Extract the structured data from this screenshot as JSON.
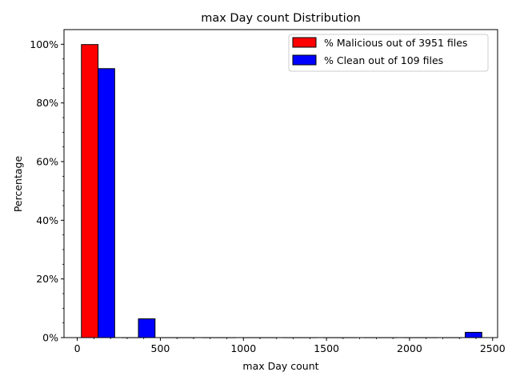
{
  "chart_data": {
    "type": "bar",
    "title": "max Day count Distribution",
    "xlabel": "max Day count",
    "ylabel": "Percentage",
    "xlim": [
      -80,
      2530
    ],
    "ylim": [
      0,
      105
    ],
    "x_ticks": [
      0,
      500,
      1000,
      1500,
      2000,
      2500
    ],
    "y_ticks": [
      0,
      20,
      40,
      60,
      80,
      100
    ],
    "y_tick_labels": [
      "0%",
      "20%",
      "40%",
      "60%",
      "80%",
      "100%"
    ],
    "grid": false,
    "legend_position": "upper right",
    "series": [
      {
        "name": "% Malicious out of 3951 files",
        "color": "#ff0000",
        "bars": [
          {
            "x0": 25,
            "x1": 125,
            "value": 99.9
          },
          {
            "x0": 268,
            "x1": 368,
            "value": 0
          },
          {
            "x0": 510,
            "x1": 610,
            "value": 0
          },
          {
            "x0": 753,
            "x1": 853,
            "value": 0
          },
          {
            "x0": 996,
            "x1": 1096,
            "value": 0
          },
          {
            "x0": 1239,
            "x1": 1339,
            "value": 0
          },
          {
            "x0": 1482,
            "x1": 1582,
            "value": 0
          },
          {
            "x0": 1725,
            "x1": 1825,
            "value": 0
          },
          {
            "x0": 1968,
            "x1": 2068,
            "value": 0
          },
          {
            "x0": 2211,
            "x1": 2311,
            "value": 0
          }
        ]
      },
      {
        "name": "% Clean out of 109 files",
        "color": "#0000ff",
        "bars": [
          {
            "x0": 125,
            "x1": 225,
            "value": 91.7
          },
          {
            "x0": 368,
            "x1": 468,
            "value": 6.4
          },
          {
            "x0": 610,
            "x1": 710,
            "value": 0
          },
          {
            "x0": 853,
            "x1": 953,
            "value": 0
          },
          {
            "x0": 1096,
            "x1": 1196,
            "value": 0
          },
          {
            "x0": 1339,
            "x1": 1439,
            "value": 0
          },
          {
            "x0": 1582,
            "x1": 1682,
            "value": 0
          },
          {
            "x0": 1825,
            "x1": 1925,
            "value": 0
          },
          {
            "x0": 2068,
            "x1": 2168,
            "value": 0
          },
          {
            "x0": 2335,
            "x1": 2435,
            "value": 1.8
          }
        ]
      }
    ]
  }
}
